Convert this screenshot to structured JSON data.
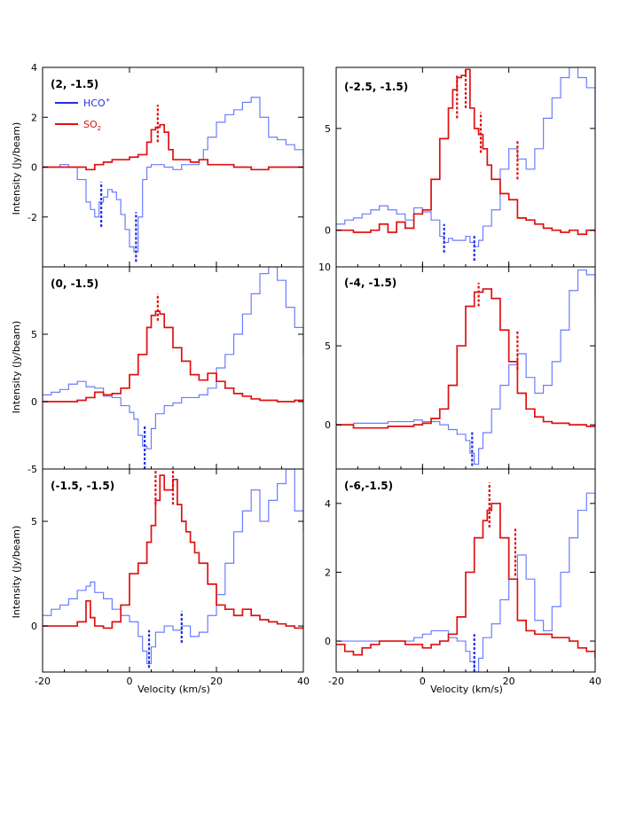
{
  "figure": {
    "xlabel": "Velocity  (km/s)",
    "ylabel": "Intensity  (Jy/beam)",
    "legend": [
      {
        "name": "HCO",
        "sup": "+",
        "sub": "",
        "color": "#1f2fe0"
      },
      {
        "name": "SO",
        "sup": "",
        "sub": "2",
        "color": "#e01010"
      }
    ]
  },
  "chart_data": [
    {
      "type": "line",
      "step": true,
      "title": "(2, -1.5)",
      "xlim": [
        -20,
        40
      ],
      "ylim": [
        -4,
        4
      ],
      "yticks": [
        "-2",
        "0",
        "2",
        "4"
      ],
      "xticks": [
        "-20",
        "0",
        "20",
        "40"
      ],
      "series": [
        {
          "name": "HCO+",
          "color": "#6a7dff",
          "x": [
            -20,
            -18,
            -16,
            -14,
            -12,
            -10,
            -9,
            -8,
            -7,
            -6,
            -5,
            -4,
            -3,
            -2,
            -1,
            0,
            1,
            2,
            3,
            4,
            5,
            6,
            8,
            10,
            12,
            14,
            16,
            17,
            18,
            20,
            22,
            24,
            26,
            28,
            30,
            32,
            34,
            36,
            38,
            40
          ],
          "y": [
            0,
            0,
            0.1,
            0,
            -0.5,
            -1.4,
            -1.7,
            -2.0,
            -1.4,
            -1.2,
            -0.9,
            -1.0,
            -1.3,
            -1.9,
            -2.5,
            -3.2,
            -3.4,
            -2.0,
            -0.5,
            0,
            0.1,
            0.1,
            0,
            -0.1,
            0.1,
            0.1,
            0.3,
            0.7,
            1.2,
            1.8,
            2.1,
            2.3,
            2.6,
            2.8,
            2.0,
            1.2,
            1.1,
            0.9,
            0.7,
            0.5
          ]
        },
        {
          "name": "SO2",
          "color": "#e01010",
          "x": [
            -20,
            -16,
            -12,
            -10,
            -8,
            -6,
            -4,
            -2,
            0,
            2,
            4,
            5,
            6,
            7,
            8,
            9,
            10,
            12,
            14,
            16,
            18,
            20,
            24,
            28,
            32,
            36,
            40
          ],
          "y": [
            0,
            0,
            0,
            -0.1,
            0.1,
            0.2,
            0.3,
            0.3,
            0.4,
            0.5,
            1.0,
            1.5,
            1.6,
            1.7,
            1.4,
            0.7,
            0.3,
            0.3,
            0.2,
            0.3,
            0.1,
            0.1,
            0,
            -0.1,
            0,
            0,
            0
          ]
        }
      ],
      "markers": [
        {
          "color": "#1f2fe0",
          "x": -6.5,
          "y0": -2.4,
          "y1": -0.6
        },
        {
          "color": "#1f2fe0",
          "x": 1.5,
          "y0": -3.8,
          "y1": -1.8
        },
        {
          "color": "#e01010",
          "x": 6.5,
          "y0": 1.0,
          "y1": 2.5
        }
      ]
    },
    {
      "type": "line",
      "step": true,
      "title": "(-2.5, -1.5)",
      "xlim": [
        -20,
        40
      ],
      "ylim": [
        -1.8,
        8
      ],
      "yticks": [
        "0",
        "5"
      ],
      "xticks": [
        "-20",
        "0",
        "20",
        "40"
      ],
      "series": [
        {
          "name": "HCO+",
          "color": "#6a7dff",
          "x": [
            -20,
            -18,
            -16,
            -14,
            -12,
            -10,
            -8,
            -6,
            -4,
            -2,
            0,
            2,
            4,
            5,
            6,
            7,
            8,
            10,
            11,
            12,
            13,
            14,
            16,
            18,
            20,
            22,
            24,
            26,
            28,
            30,
            32,
            34,
            36,
            38,
            40
          ],
          "y": [
            0.3,
            0.5,
            0.6,
            0.8,
            1.0,
            1.2,
            1.0,
            0.8,
            0.5,
            1.1,
            0.9,
            0.5,
            -0.3,
            -0.6,
            -0.4,
            -0.5,
            -0.5,
            -0.3,
            -0.6,
            -0.8,
            -0.5,
            0.2,
            1.0,
            3.0,
            4.0,
            3.5,
            3.0,
            4.0,
            5.5,
            6.5,
            7.5,
            8.0,
            7.5,
            7.0,
            5.0
          ]
        },
        {
          "name": "SO2",
          "color": "#e01010",
          "x": [
            -20,
            -16,
            -12,
            -10,
            -8,
            -6,
            -4,
            -2,
            0,
            2,
            4,
            6,
            7,
            8,
            9,
            10,
            11,
            12,
            13,
            14,
            15,
            16,
            18,
            20,
            22,
            24,
            26,
            28,
            30,
            32,
            34,
            36,
            38,
            40
          ],
          "y": [
            0,
            -0.1,
            0,
            0.3,
            -0.1,
            0.4,
            0.1,
            0.8,
            1.0,
            2.5,
            4.5,
            6.0,
            6.9,
            7.5,
            7.6,
            7.9,
            6.0,
            5.0,
            4.7,
            4.0,
            3.2,
            2.5,
            1.8,
            1.5,
            0.6,
            0.5,
            0.3,
            0.1,
            0,
            -0.1,
            0,
            -0.2,
            0,
            -0.1
          ]
        }
      ],
      "markers": [
        {
          "color": "#1f2fe0",
          "x": 5,
          "y0": -1.1,
          "y1": 0.3
        },
        {
          "color": "#1f2fe0",
          "x": 12,
          "y0": -1.5,
          "y1": -0.2
        },
        {
          "color": "#e01010",
          "x": 8,
          "y0": 5.5,
          "y1": 7.6
        },
        {
          "color": "#e01010",
          "x": 10,
          "y0": 6.0,
          "y1": 7.9
        },
        {
          "color": "#e01010",
          "x": 13.5,
          "y0": 3.8,
          "y1": 5.8
        },
        {
          "color": "#e01010",
          "x": 22,
          "y0": 2.5,
          "y1": 4.4
        }
      ]
    },
    {
      "type": "line",
      "step": true,
      "title": "(0, -1.5)",
      "xlim": [
        -20,
        40
      ],
      "ylim": [
        -5,
        10
      ],
      "yticks": [
        "-5",
        "0",
        "5"
      ],
      "xticks": [
        "-20",
        "0",
        "20",
        "40"
      ],
      "series": [
        {
          "name": "HCO+",
          "color": "#6a7dff",
          "x": [
            -20,
            -18,
            -16,
            -14,
            -12,
            -10,
            -8,
            -6,
            -4,
            -2,
            0,
            1,
            2,
            3,
            4,
            5,
            6,
            8,
            10,
            12,
            14,
            16,
            18,
            20,
            22,
            24,
            26,
            28,
            30,
            32,
            34,
            36,
            38,
            40
          ],
          "y": [
            0.5,
            0.7,
            0.9,
            1.3,
            1.5,
            1.1,
            1.0,
            0.4,
            0.3,
            -0.3,
            -0.8,
            -1.3,
            -2.5,
            -3.3,
            -3.5,
            -2.0,
            -0.9,
            -0.3,
            -0.1,
            0.3,
            0.3,
            0.5,
            1.0,
            2.5,
            3.5,
            5.0,
            6.5,
            8.0,
            9.5,
            10.0,
            9.0,
            7.0,
            5.5,
            3.5
          ]
        },
        {
          "name": "SO2",
          "color": "#e01010",
          "x": [
            -20,
            -16,
            -12,
            -10,
            -8,
            -6,
            -4,
            -2,
            0,
            2,
            4,
            5,
            6,
            7,
            8,
            10,
            12,
            14,
            16,
            18,
            20,
            22,
            24,
            26,
            28,
            30,
            34,
            38,
            40
          ],
          "y": [
            0,
            0,
            0.1,
            0.3,
            0.7,
            0.5,
            0.6,
            1.0,
            2.0,
            3.5,
            5.5,
            6.4,
            6.7,
            6.5,
            5.5,
            4.0,
            3.0,
            2.0,
            1.6,
            2.1,
            1.5,
            1.0,
            0.6,
            0.4,
            0.2,
            0.1,
            0,
            0.1,
            0
          ]
        }
      ],
      "markers": [
        {
          "color": "#1f2fe0",
          "x": 3.5,
          "y0": -5,
          "y1": -1.8
        },
        {
          "color": "#e01010",
          "x": 6.5,
          "y0": 6.0,
          "y1": 8.0
        }
      ]
    },
    {
      "type": "line",
      "step": true,
      "title": "(-4, -1.5)",
      "xlim": [
        -20,
        40
      ],
      "ylim": [
        -2.8,
        10
      ],
      "yticks": [
        "0",
        "5",
        "10"
      ],
      "xticks": [
        "-20",
        "0",
        "20",
        "40"
      ],
      "series": [
        {
          "name": "HCO+",
          "color": "#6a7dff",
          "x": [
            -20,
            -16,
            -12,
            -8,
            -4,
            -2,
            0,
            2,
            4,
            6,
            8,
            10,
            11,
            12,
            13,
            14,
            16,
            18,
            20,
            22,
            24,
            26,
            28,
            30,
            32,
            34,
            36,
            38,
            40
          ],
          "y": [
            0,
            0.1,
            0.1,
            0.2,
            0.2,
            0.3,
            0.2,
            0.2,
            0,
            -0.3,
            -0.6,
            -1.0,
            -1.8,
            -2.5,
            -1.5,
            -0.5,
            1.0,
            2.5,
            3.8,
            4.5,
            3.0,
            2.0,
            2.5,
            4.0,
            6.0,
            8.5,
            9.8,
            9.5,
            8.0
          ]
        },
        {
          "name": "SO2",
          "color": "#e01010",
          "x": [
            -20,
            -16,
            -12,
            -8,
            -4,
            -2,
            0,
            2,
            4,
            6,
            8,
            10,
            12,
            14,
            16,
            18,
            20,
            22,
            24,
            26,
            28,
            30,
            34,
            38,
            40
          ],
          "y": [
            0,
            -0.2,
            -0.2,
            -0.1,
            -0.1,
            0,
            0.1,
            0.4,
            1.0,
            2.5,
            5.0,
            7.5,
            8.4,
            8.6,
            8.0,
            6.0,
            4.0,
            2.0,
            1.0,
            0.5,
            0.2,
            0.1,
            0,
            -0.1,
            0
          ]
        }
      ],
      "markers": [
        {
          "color": "#1f2fe0",
          "x": 11.5,
          "y0": -2.6,
          "y1": -0.4
        },
        {
          "color": "#e01010",
          "x": 13,
          "y0": 7.5,
          "y1": 9.0
        },
        {
          "color": "#e01010",
          "x": 22,
          "y0": 3.5,
          "y1": 6.0
        }
      ]
    },
    {
      "type": "line",
      "step": true,
      "title": "(-1.5, -1.5)",
      "xlim": [
        -20,
        40
      ],
      "ylim": [
        -2.2,
        7.5
      ],
      "yticks": [
        "0",
        "5"
      ],
      "xticks": [
        "-20",
        "0",
        "20",
        "40"
      ],
      "series": [
        {
          "name": "HCO+",
          "color": "#6a7dff",
          "x": [
            -20,
            -18,
            -16,
            -14,
            -12,
            -10,
            -9,
            -8,
            -6,
            -4,
            -2,
            0,
            2,
            3,
            4,
            5,
            6,
            8,
            10,
            12,
            14,
            16,
            18,
            20,
            22,
            24,
            26,
            28,
            30,
            32,
            34,
            36,
            38,
            40
          ],
          "y": [
            0.5,
            0.8,
            1.0,
            1.3,
            1.7,
            1.9,
            2.1,
            1.6,
            1.3,
            0.8,
            0.5,
            0.2,
            -0.5,
            -1.2,
            -1.8,
            -1.0,
            -0.3,
            0,
            -0.2,
            0,
            -0.5,
            -0.3,
            0.5,
            1.5,
            3.0,
            4.5,
            5.5,
            6.5,
            5.0,
            6.0,
            6.8,
            7.5,
            5.5,
            4.5
          ]
        },
        {
          "name": "SO2",
          "color": "#e01010",
          "x": [
            -20,
            -16,
            -12,
            -10,
            -9,
            -8,
            -6,
            -4,
            -2,
            0,
            2,
            4,
            5,
            6,
            7,
            8,
            9,
            10,
            11,
            12,
            13,
            14,
            15,
            16,
            18,
            20,
            22,
            24,
            26,
            28,
            30,
            32,
            34,
            36,
            38,
            40
          ],
          "y": [
            0,
            0,
            0.2,
            1.2,
            0.4,
            0,
            -0.1,
            0.2,
            1.0,
            2.5,
            3.0,
            4.0,
            4.8,
            6.0,
            7.2,
            6.5,
            6.5,
            7.0,
            5.8,
            5.0,
            4.5,
            4.0,
            3.5,
            3.0,
            2.0,
            1.0,
            0.8,
            0.5,
            0.8,
            0.5,
            0.3,
            0.2,
            0.1,
            0,
            -0.1,
            0
          ]
        }
      ],
      "markers": [
        {
          "color": "#1f2fe0",
          "x": 4.5,
          "y0": -2.0,
          "y1": -0.2
        },
        {
          "color": "#1f2fe0",
          "x": 12,
          "y0": -0.8,
          "y1": 0.7
        },
        {
          "color": "#e01010",
          "x": 6,
          "y0": 5.8,
          "y1": 7.5
        },
        {
          "color": "#e01010",
          "x": 10,
          "y0": 5.8,
          "y1": 7.5
        }
      ]
    },
    {
      "type": "line",
      "step": true,
      "title": "(-6,-1.5)",
      "xlim": [
        -20,
        40
      ],
      "ylim": [
        -0.9,
        5
      ],
      "yticks": [
        "0",
        "2",
        "4"
      ],
      "xticks": [
        "-20",
        "0",
        "20",
        "40"
      ],
      "series": [
        {
          "name": "HCO+",
          "color": "#6a7dff",
          "x": [
            -20,
            -16,
            -12,
            -8,
            -4,
            -2,
            0,
            2,
            4,
            6,
            8,
            10,
            11,
            12,
            13,
            14,
            16,
            18,
            20,
            22,
            24,
            26,
            28,
            30,
            32,
            34,
            36,
            38,
            40
          ],
          "y": [
            0,
            0,
            0,
            0,
            0,
            0.1,
            0.2,
            0.3,
            0.3,
            0.1,
            0,
            -0.3,
            -0.6,
            -0.9,
            -0.5,
            0.1,
            0.5,
            1.2,
            1.8,
            2.5,
            1.8,
            0.6,
            0.3,
            1.0,
            2.0,
            3.0,
            3.8,
            4.3,
            4.0
          ]
        },
        {
          "name": "SO2",
          "color": "#e01010",
          "x": [
            -20,
            -18,
            -16,
            -14,
            -12,
            -10,
            -8,
            -6,
            -4,
            -2,
            0,
            2,
            4,
            6,
            8,
            10,
            12,
            14,
            15,
            16,
            18,
            20,
            22,
            24,
            26,
            28,
            30,
            32,
            34,
            36,
            38,
            40
          ],
          "y": [
            -0.1,
            -0.3,
            -0.4,
            -0.2,
            -0.1,
            0,
            0,
            0,
            -0.1,
            -0.1,
            -0.2,
            -0.1,
            0,
            0.2,
            0.7,
            2.0,
            3.0,
            3.5,
            3.8,
            4.0,
            3.0,
            1.8,
            0.6,
            0.3,
            0.2,
            0.2,
            0.1,
            0.1,
            0,
            -0.2,
            -0.3,
            -0.5
          ]
        }
      ],
      "markers": [
        {
          "color": "#1f2fe0",
          "x": 12,
          "y0": -0.9,
          "y1": 0.2
        },
        {
          "color": "#e01010",
          "x": 15.5,
          "y0": 3.3,
          "y1": 4.6
        },
        {
          "color": "#e01010",
          "x": 21.5,
          "y0": 1.9,
          "y1": 3.3
        }
      ]
    }
  ]
}
